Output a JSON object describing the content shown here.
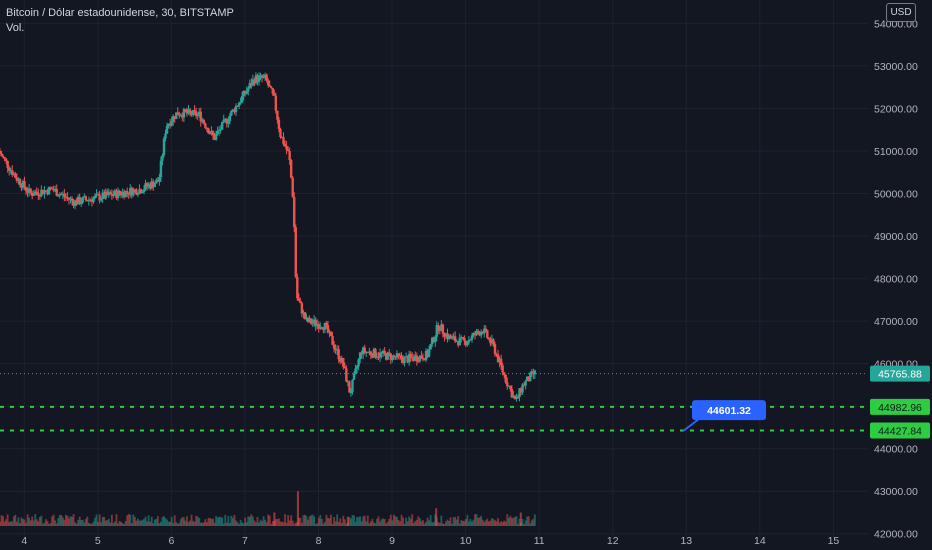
{
  "legend": {
    "symbol": "Bitcoin / Dólar estadounidense, 30, BITSTAMP",
    "volume_label": "Vol."
  },
  "currency_button": "USD",
  "colors": {
    "background": "#131722",
    "grid": "#1e222d",
    "up": "#26a69a",
    "down": "#ef5350",
    "level_line": "#2ecc40",
    "callout": "#2962ff"
  },
  "chart_data": {
    "type": "candlestick",
    "y_ticks": [
      "54000.00",
      "53000.00",
      "52000.00",
      "51000.00",
      "50000.00",
      "49000.00",
      "48000.00",
      "47000.00",
      "46000.00",
      "45000.00",
      "44000.00",
      "43000.00",
      "42000.00"
    ],
    "y_tick_values": [
      54000,
      53000,
      52000,
      51000,
      50000,
      49000,
      48000,
      47000,
      46000,
      45000,
      44000,
      43000,
      42000
    ],
    "ylim": [
      41900,
      54550
    ],
    "x_ticks": [
      "4",
      "5",
      "6",
      "7",
      "8",
      "9",
      "10",
      "11",
      "12",
      "13",
      "14",
      "15"
    ],
    "x_tick_days": [
      4,
      5,
      6,
      7,
      8,
      9,
      10,
      11,
      12,
      13,
      14,
      15
    ],
    "xlim": [
      3.67,
      15.47
    ],
    "grid": true,
    "price_path": [
      [
        3.67,
        51000
      ],
      [
        3.9,
        50400
      ],
      [
        4.1,
        50000
      ],
      [
        4.4,
        50100
      ],
      [
        4.7,
        49800
      ],
      [
        5.0,
        49900
      ],
      [
        5.3,
        50000
      ],
      [
        5.6,
        50100
      ],
      [
        5.85,
        50300
      ],
      [
        5.95,
        51600
      ],
      [
        6.1,
        51900
      ],
      [
        6.4,
        51850
      ],
      [
        6.6,
        51300
      ],
      [
        6.8,
        51800
      ],
      [
        7.0,
        52300
      ],
      [
        7.15,
        52700
      ],
      [
        7.3,
        52700
      ],
      [
        7.42,
        52200
      ],
      [
        7.5,
        51400
      ],
      [
        7.62,
        50900
      ],
      [
        7.68,
        49800
      ],
      [
        7.72,
        47600
      ],
      [
        7.85,
        47000
      ],
      [
        8.1,
        46900
      ],
      [
        8.35,
        46000
      ],
      [
        8.45,
        45300
      ],
      [
        8.6,
        46300
      ],
      [
        8.9,
        46200
      ],
      [
        9.2,
        46100
      ],
      [
        9.5,
        46200
      ],
      [
        9.65,
        46900
      ],
      [
        9.8,
        46600
      ],
      [
        10.0,
        46500
      ],
      [
        10.25,
        46800
      ],
      [
        10.4,
        46400
      ],
      [
        10.55,
        45700
      ],
      [
        10.7,
        45100
      ],
      [
        10.8,
        45500
      ],
      [
        10.95,
        45765.88
      ]
    ],
    "volume_spikes": [
      [
        7.72,
        43000
      ],
      [
        7.4,
        42500
      ],
      [
        9.6,
        42600
      ],
      [
        10.75,
        42500
      ],
      [
        8.4,
        42400
      ]
    ],
    "current_price": {
      "label": "45765.88",
      "value": 45765.88
    },
    "levels": [
      {
        "label": "44982.96",
        "value": 44982.96
      },
      {
        "label": "44427.84",
        "value": 44427.84
      }
    ],
    "annotation": {
      "label": "44601.32",
      "value": 44601.32
    }
  }
}
